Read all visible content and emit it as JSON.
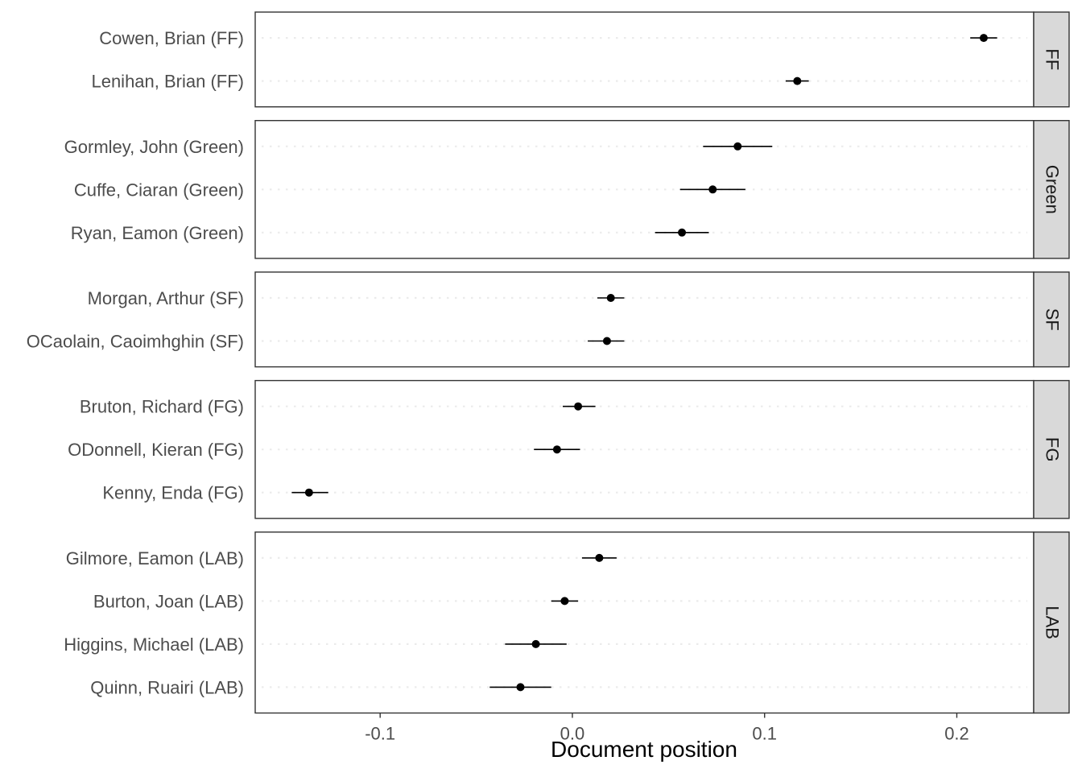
{
  "chart_data": {
    "type": "scatter",
    "subtype": "dot-plot with error bars, faceted by party",
    "xlabel": "Document position",
    "ylabel": "",
    "xlim": [
      -0.165,
      0.24
    ],
    "xticks": [
      -0.1,
      0.0,
      0.1,
      0.2
    ],
    "xtick_labels": [
      "-0.1",
      "0.0",
      "0.1",
      "0.2"
    ],
    "grid": "horizontal dotted",
    "facets": [
      {
        "strip": "FF",
        "rows": [
          {
            "label": "Cowen, Brian (FF)",
            "value": 0.214,
            "lower": 0.207,
            "upper": 0.221
          },
          {
            "label": "Lenihan, Brian (FF)",
            "value": 0.117,
            "lower": 0.111,
            "upper": 0.123
          }
        ]
      },
      {
        "strip": "Green",
        "rows": [
          {
            "label": "Gormley, John (Green)",
            "value": 0.086,
            "lower": 0.068,
            "upper": 0.104
          },
          {
            "label": "Cuffe, Ciaran (Green)",
            "value": 0.073,
            "lower": 0.056,
            "upper": 0.09
          },
          {
            "label": "Ryan, Eamon (Green)",
            "value": 0.057,
            "lower": 0.043,
            "upper": 0.071
          }
        ]
      },
      {
        "strip": "SF",
        "rows": [
          {
            "label": "Morgan, Arthur (SF)",
            "value": 0.02,
            "lower": 0.013,
            "upper": 0.027
          },
          {
            "label": "OCaolain, Caoimhghin (SF)",
            "value": 0.018,
            "lower": 0.008,
            "upper": 0.027
          }
        ]
      },
      {
        "strip": "FG",
        "rows": [
          {
            "label": "Bruton, Richard (FG)",
            "value": 0.003,
            "lower": -0.005,
            "upper": 0.012
          },
          {
            "label": "ODonnell, Kieran (FG)",
            "value": -0.008,
            "lower": -0.02,
            "upper": 0.004
          },
          {
            "label": "Kenny, Enda (FG)",
            "value": -0.137,
            "lower": -0.146,
            "upper": -0.127
          }
        ]
      },
      {
        "strip": "LAB",
        "rows": [
          {
            "label": "Gilmore, Eamon (LAB)",
            "value": 0.014,
            "lower": 0.005,
            "upper": 0.023
          },
          {
            "label": "Burton, Joan (LAB)",
            "value": -0.004,
            "lower": -0.011,
            "upper": 0.003
          },
          {
            "label": "Higgins, Michael (LAB)",
            "value": -0.019,
            "lower": -0.035,
            "upper": -0.003
          },
          {
            "label": "Quinn, Ruairi (LAB)",
            "value": -0.027,
            "lower": -0.043,
            "upper": -0.011
          }
        ]
      }
    ],
    "colors": {
      "point": "#000000",
      "errorbar": "#000000",
      "panel_border": "#333333",
      "strip_fill": "#d9d9d9",
      "gridline": "#ebebeb",
      "tick_text": "#4d4d4d"
    }
  }
}
